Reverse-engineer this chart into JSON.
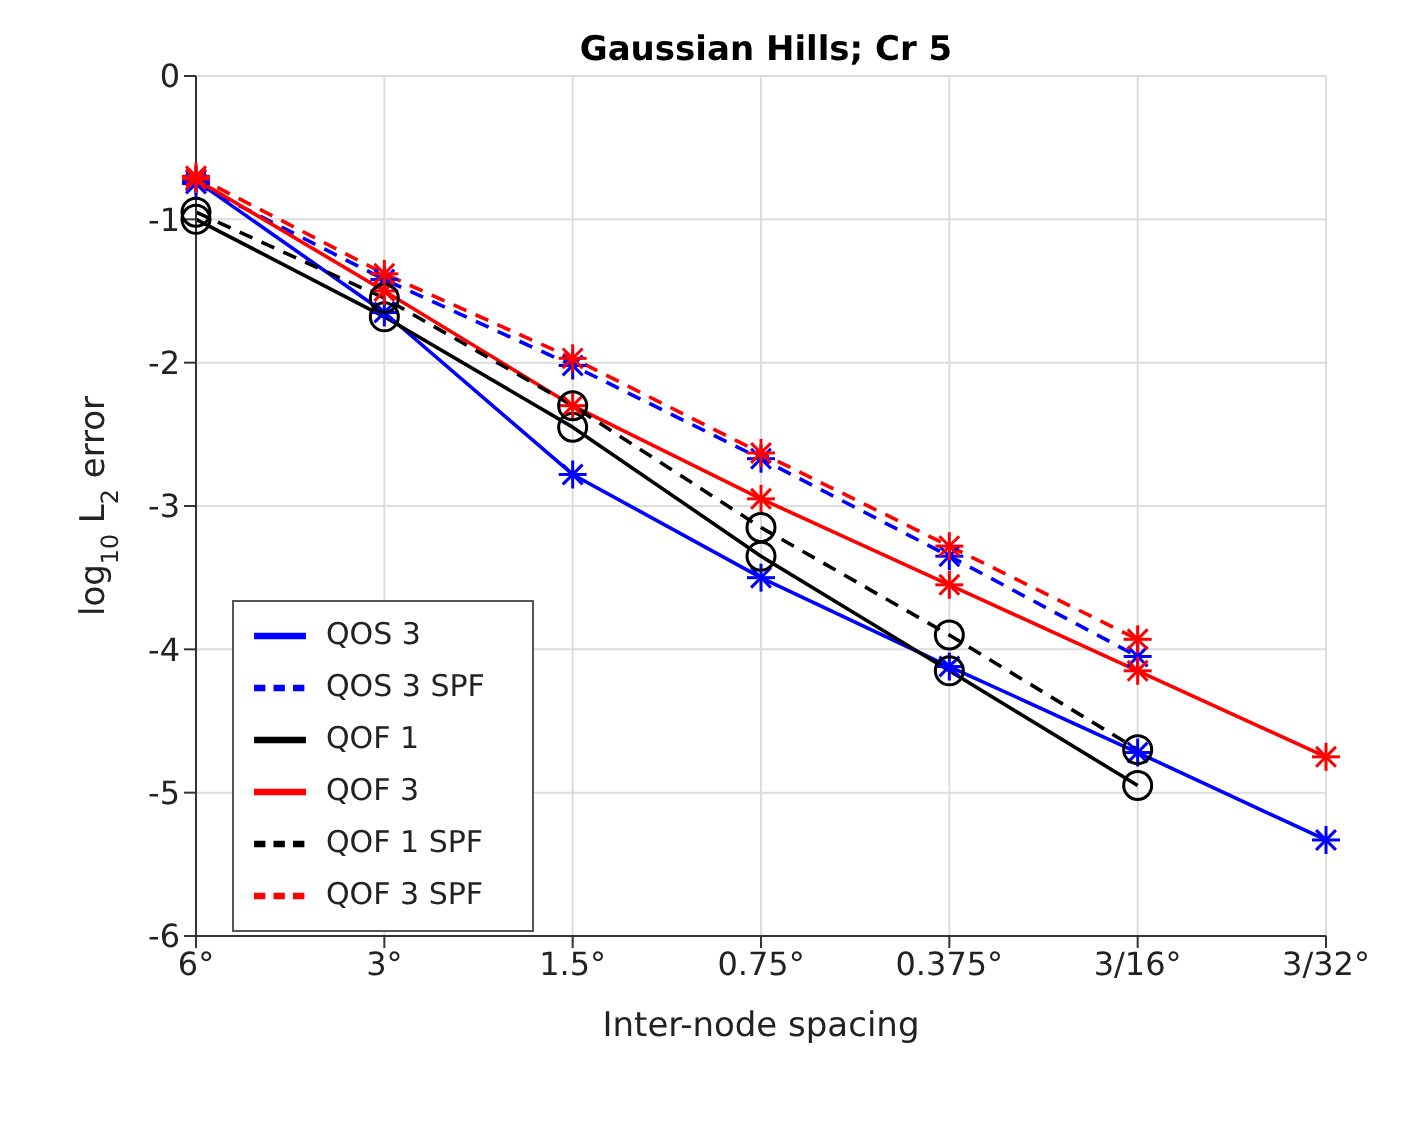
{
  "chart_data": {
    "type": "line",
    "title": "Gaussian Hills; Cr 5",
    "xlabel": "Inter-node spacing",
    "ylabel": "log$_{10}$ L$_{2}$ error",
    "categories": [
      "6°",
      "3°",
      "1.5°",
      "0.75°",
      "0.375°",
      "3/16°",
      "3/32°"
    ],
    "series": [
      {
        "name": "QOS 3",
        "color": "#0000ff",
        "marker": "cross",
        "line_style": "solid",
        "values": [
          -0.73,
          -1.65,
          -2.78,
          -3.5,
          -4.12,
          -4.72,
          -5.33
        ]
      },
      {
        "name": "QOS 3 SPF",
        "color": "#0000ff",
        "marker": "cross",
        "line_style": "dashed",
        "values": [
          -0.75,
          -1.42,
          -2.02,
          -2.67,
          -3.35,
          -4.05,
          null
        ]
      },
      {
        "name": "QOF 1",
        "color": "#000000",
        "marker": "circle",
        "line_style": "solid",
        "values": [
          -1.0,
          -1.68,
          -2.45,
          -3.35,
          -4.15,
          -4.95,
          null
        ]
      },
      {
        "name": "QOF 3",
        "color": "#ff0000",
        "marker": "cross",
        "line_style": "solid",
        "values": [
          -0.72,
          -1.5,
          -2.3,
          -2.95,
          -3.55,
          -4.15,
          -4.75
        ]
      },
      {
        "name": "QOF 1 SPF",
        "color": "#000000",
        "marker": "circle",
        "line_style": "dashed",
        "values": [
          -0.95,
          -1.55,
          -2.3,
          -3.15,
          -3.9,
          -4.7,
          null
        ]
      },
      {
        "name": "QOF 3 SPF",
        "color": "#ff0000",
        "marker": "cross",
        "line_style": "dashed",
        "values": [
          -0.7,
          -1.38,
          -1.97,
          -2.63,
          -3.28,
          -3.93,
          null
        ]
      }
    ],
    "ylim": [
      -6,
      0
    ],
    "yticks": [
      -6,
      -5,
      -4,
      -3,
      -2,
      -1,
      0
    ],
    "grid": true,
    "legend": "bottom left"
  }
}
